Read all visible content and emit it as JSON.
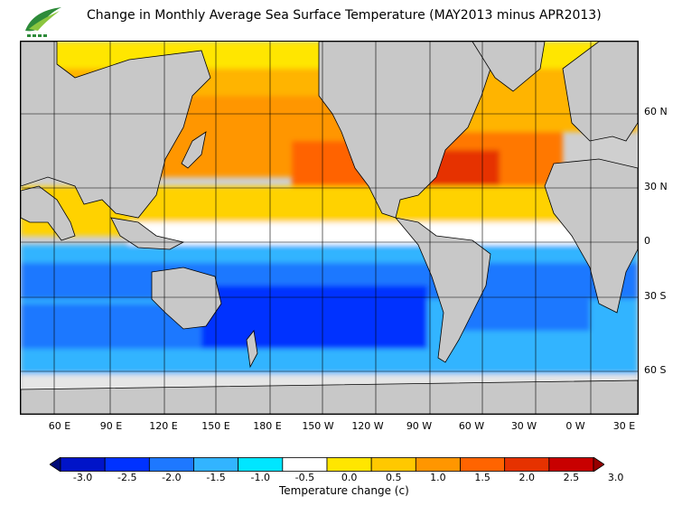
{
  "title": "Change in Monthly Average Sea Surface Temperature (MAY2013 minus APR2013)",
  "logo": {
    "icon": "leaf-logo-icon",
    "color_primary": "#2e8b3a",
    "color_secondary": "#8cc63f"
  },
  "latitude_labels": [
    "60 N",
    "30 N",
    "0",
    "30 S",
    "60 S"
  ],
  "longitude_labels": [
    "60 E",
    "90 E",
    "120 E",
    "150 E",
    "180 E",
    "150 W",
    "120 W",
    "90 W",
    "60 W",
    "30 W",
    "0 W",
    "30 E"
  ],
  "colorbar": {
    "title": "Temperature change  (c)",
    "labels": [
      "-3.0",
      "-2.5",
      "-2.0",
      "-1.5",
      "-1.0",
      "-0.5",
      "0.0",
      "0.5",
      "1.0",
      "1.5",
      "2.0",
      "2.5",
      "3.0"
    ],
    "colors": [
      "#000a78",
      "#0014c8",
      "#0032ff",
      "#1e78ff",
      "#32b4ff",
      "#00e6ff",
      "#ffffff",
      "#ffe600",
      "#ffc800",
      "#ff9600",
      "#ff6400",
      "#e63200",
      "#c80000",
      "#960000"
    ]
  },
  "colors": {
    "land": "#c8c8c8",
    "ice": "#e6e6e6",
    "warm_strong": "#e63200",
    "warm": "#ff9600",
    "warm_light": "#ffc800",
    "cool": "#1e78ff",
    "cool_strong": "#0032ff",
    "neutral": "#ffffff"
  }
}
